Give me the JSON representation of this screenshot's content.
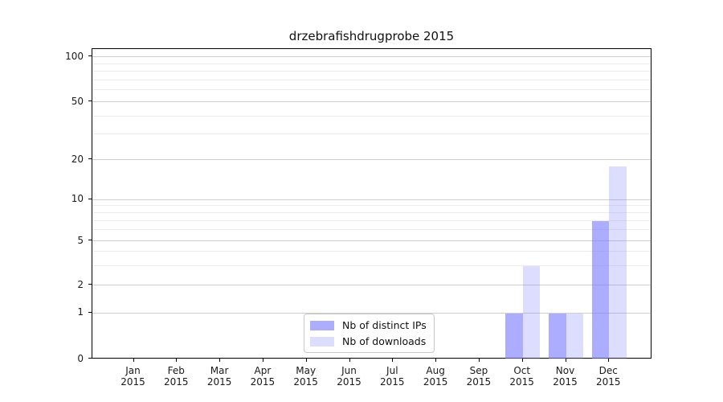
{
  "chart_data": {
    "type": "bar",
    "title": "drzebrafishdrugprobe 2015",
    "categories": [
      "Jan 2015",
      "Feb 2015",
      "Mar 2015",
      "Apr 2015",
      "May 2015",
      "Jun 2015",
      "Jul 2015",
      "Aug 2015",
      "Sep 2015",
      "Oct 2015",
      "Nov 2015",
      "Dec 2015"
    ],
    "x_tick_months": [
      "Jan",
      "Feb",
      "Mar",
      "Apr",
      "May",
      "Jun",
      "Jul",
      "Aug",
      "Sep",
      "Oct",
      "Nov",
      "Dec"
    ],
    "x_tick_year": "2015",
    "series": [
      {
        "name": "Nb of distinct IPs",
        "color": "#7777FF",
        "alpha": 0.6,
        "color_hex8": "#7777FF99",
        "values": [
          0,
          0,
          0,
          0,
          0,
          0,
          0,
          0,
          0,
          1,
          1,
          7
        ]
      },
      {
        "name": "Nb of downloads",
        "color": "#7777FF",
        "alpha": 0.25,
        "color_hex8": "#7777FF40",
        "values": [
          0,
          0,
          0,
          0,
          0,
          0,
          0,
          0,
          0,
          3,
          1,
          18
        ]
      }
    ],
    "y_axis": {
      "major_ticks": [
        0,
        1,
        2,
        5,
        10,
        20,
        50,
        100
      ],
      "minor_gridlines": [
        3,
        4,
        6,
        7,
        8,
        9,
        30,
        40,
        60,
        70,
        80,
        90
      ],
      "scale": "symlog",
      "ylim": [
        0,
        114
      ]
    },
    "xlabel": "",
    "ylabel": "",
    "grid": true,
    "legend_position": "inside bottom-center",
    "colors": {
      "bar_dark": "#A9A9F7",
      "bar_light": "#DCDCFA",
      "major_grid": "#CFCFCF",
      "minor_grid": "#ECECEC",
      "spine": "#000000",
      "text": "#1A1A1A",
      "background": "#FFFFFF"
    }
  }
}
